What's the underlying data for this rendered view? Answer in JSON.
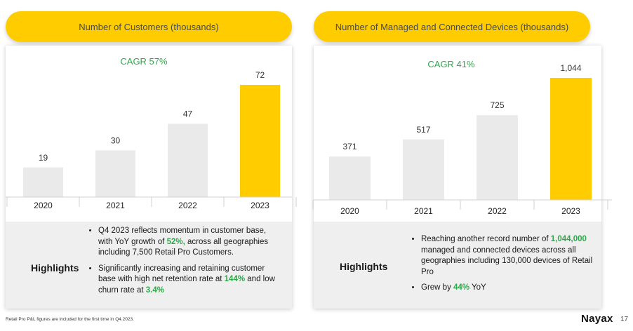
{
  "colors": {
    "accent": "#FFCC00",
    "bar_gray": "#EAEAEA",
    "green": "#2EA84A"
  },
  "left": {
    "pill_title": "Number of Customers (thousands)",
    "cagr": "CAGR 57%",
    "highlights_title": "Highlights",
    "bullets": [
      {
        "a": "Q4 2023 reflects momentum in customer base, with YoY growth of ",
        "g1": "52%,",
        "b": " across all geographies including 7,500 Retail Pro Customers."
      },
      {
        "a": "Significantly increasing and retaining customer base with high net retention rate at ",
        "g1": "144%",
        "b": " and low churn rate at ",
        "g2": "3.4%"
      }
    ]
  },
  "right": {
    "pill_title": "Number of Managed and Connected Devices (thousands)",
    "cagr": "CAGR 41%",
    "highlights_title": "Highlights",
    "bullets": [
      {
        "a": "Reaching another record number of ",
        "g1": "1,044,000",
        "b": " managed and connected devices across all geographies including 130,000 devices of Retail Pro"
      },
      {
        "a": "Grew by ",
        "g1": "44%",
        "b": " YoY"
      }
    ]
  },
  "chart_data": [
    {
      "type": "bar",
      "title": "Number of Customers (thousands)",
      "categories": [
        "2020",
        "2021",
        "2022",
        "2023"
      ],
      "values": [
        19,
        30,
        47,
        72
      ],
      "labels": [
        "19",
        "30",
        "47",
        "72"
      ],
      "highlight_index": 3,
      "ylim": [
        0,
        72
      ]
    },
    {
      "type": "bar",
      "title": "Number of Managed and Connected Devices (thousands)",
      "categories": [
        "2020",
        "2021",
        "2022",
        "2023"
      ],
      "values": [
        371,
        517,
        725,
        1044
      ],
      "labels": [
        "371",
        "517",
        "725",
        "1,044"
      ],
      "highlight_index": 3,
      "ylim": [
        0,
        1044
      ]
    }
  ],
  "footnote": "Retail Pro P&L figures are included for the first time in Q4.2023.",
  "brand": "Nayax",
  "page_number": "17"
}
